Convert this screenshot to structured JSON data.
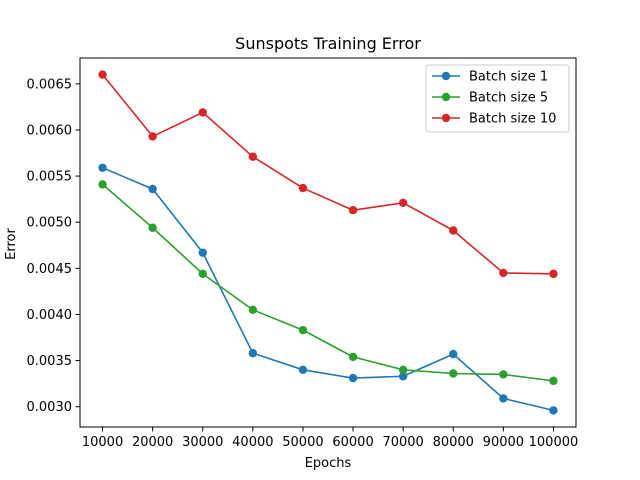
{
  "chart_data": {
    "type": "line",
    "title": "Sunspots Training Error",
    "xlabel": "Epochs",
    "ylabel": "Error",
    "x": [
      10000,
      20000,
      30000,
      40000,
      50000,
      60000,
      70000,
      80000,
      90000,
      100000
    ],
    "xlim": [
      5500,
      104500
    ],
    "ylim": [
      0.00278,
      0.00678
    ],
    "x_ticks": [
      10000,
      20000,
      30000,
      40000,
      50000,
      60000,
      70000,
      80000,
      90000,
      100000
    ],
    "x_tick_labels": [
      "10000",
      "20000",
      "30000",
      "40000",
      "50000",
      "60000",
      "70000",
      "80000",
      "90000",
      "100000"
    ],
    "y_ticks": [
      0.003,
      0.0035,
      0.004,
      0.0045,
      0.005,
      0.0055,
      0.006,
      0.0065
    ],
    "y_tick_labels": [
      "0.0030",
      "0.0035",
      "0.0040",
      "0.0045",
      "0.0050",
      "0.0055",
      "0.0060",
      "0.0065"
    ],
    "grid": false,
    "legend_position": "top-right",
    "series": [
      {
        "name": "Batch size 1",
        "color": "#1f77b4",
        "values": [
          0.00559,
          0.00536,
          0.00467,
          0.00358,
          0.0034,
          0.00331,
          0.00333,
          0.00357,
          0.00309,
          0.00296
        ]
      },
      {
        "name": "Batch size 5",
        "color": "#2ca02c",
        "values": [
          0.00541,
          0.00494,
          0.00444,
          0.00405,
          0.00383,
          0.00354,
          0.0034,
          0.00336,
          0.00335,
          0.00328
        ]
      },
      {
        "name": "Batch size 10",
        "color": "#d62728",
        "values": [
          0.0066,
          0.00593,
          0.00619,
          0.00571,
          0.00537,
          0.00513,
          0.00521,
          0.00491,
          0.00445,
          0.00444
        ]
      }
    ]
  }
}
